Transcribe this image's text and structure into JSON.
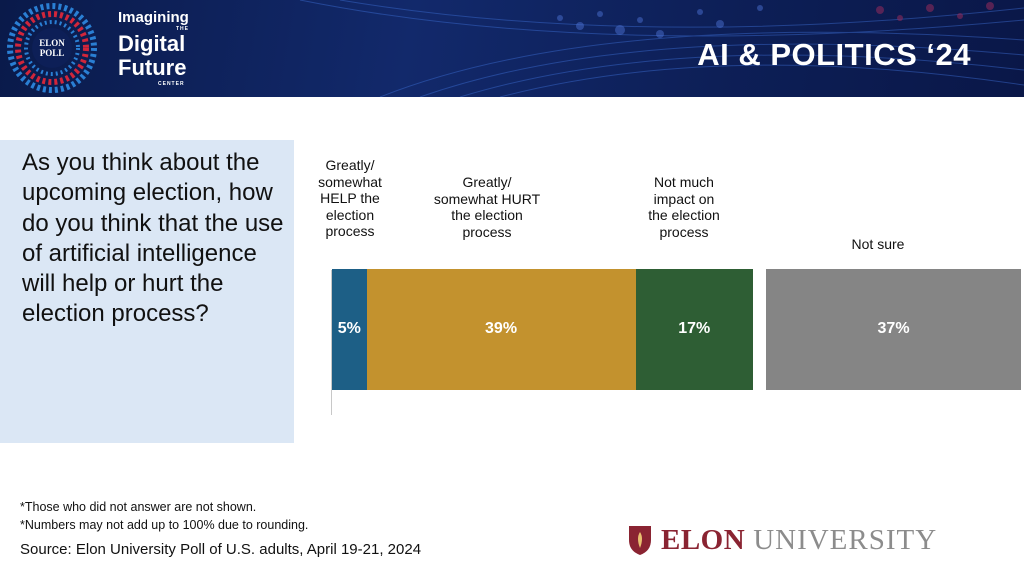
{
  "header": {
    "logo_small": "ELON POLL",
    "center_line1": "Imagining",
    "center_line_the": "THE",
    "center_line2": "Digital",
    "center_line3": "Future",
    "center_line4": "CENTER",
    "title": "AI & POLITICS ‘24",
    "colors": {
      "navy": "#0d1f57",
      "red": "#d1263b",
      "blue": "#2a7fd4"
    }
  },
  "question": "As you think about the upcoming election, how do you think that the use of artificial intelligence will help or hurt the election process?",
  "chart_data": {
    "type": "bar",
    "orientation": "horizontal-stacked",
    "title": "",
    "categories": [
      "Greatly/ somewhat HELP the election process",
      "Greatly/ somewhat HURT the election process",
      "Not much impact on the election process",
      "Not sure"
    ],
    "values": [
      5,
      39,
      17,
      37
    ],
    "labels": [
      "5%",
      "39%",
      "17%",
      "37%"
    ],
    "colors": [
      "#1d5f86",
      "#c3922e",
      "#2e5e34",
      "#858585"
    ],
    "category_lines": [
      [
        "Greatly/",
        "somewhat",
        "HELP the",
        "election",
        "process"
      ],
      [
        "Greatly/",
        "somewhat HURT",
        "the election",
        "process"
      ],
      [
        "Not much",
        "impact on",
        "the election",
        "process"
      ],
      [
        "Not sure"
      ]
    ],
    "xlim": [
      0,
      100
    ],
    "unit": "%"
  },
  "footer": {
    "note1": "*Those who did not answer are not shown.",
    "note2": "*Numbers may not add up to 100% due to rounding.",
    "source": "Source: Elon University Poll of U.S. adults, April 19-21, 2024",
    "brand1": "ELON",
    "brand2": "UNIVERSITY"
  }
}
